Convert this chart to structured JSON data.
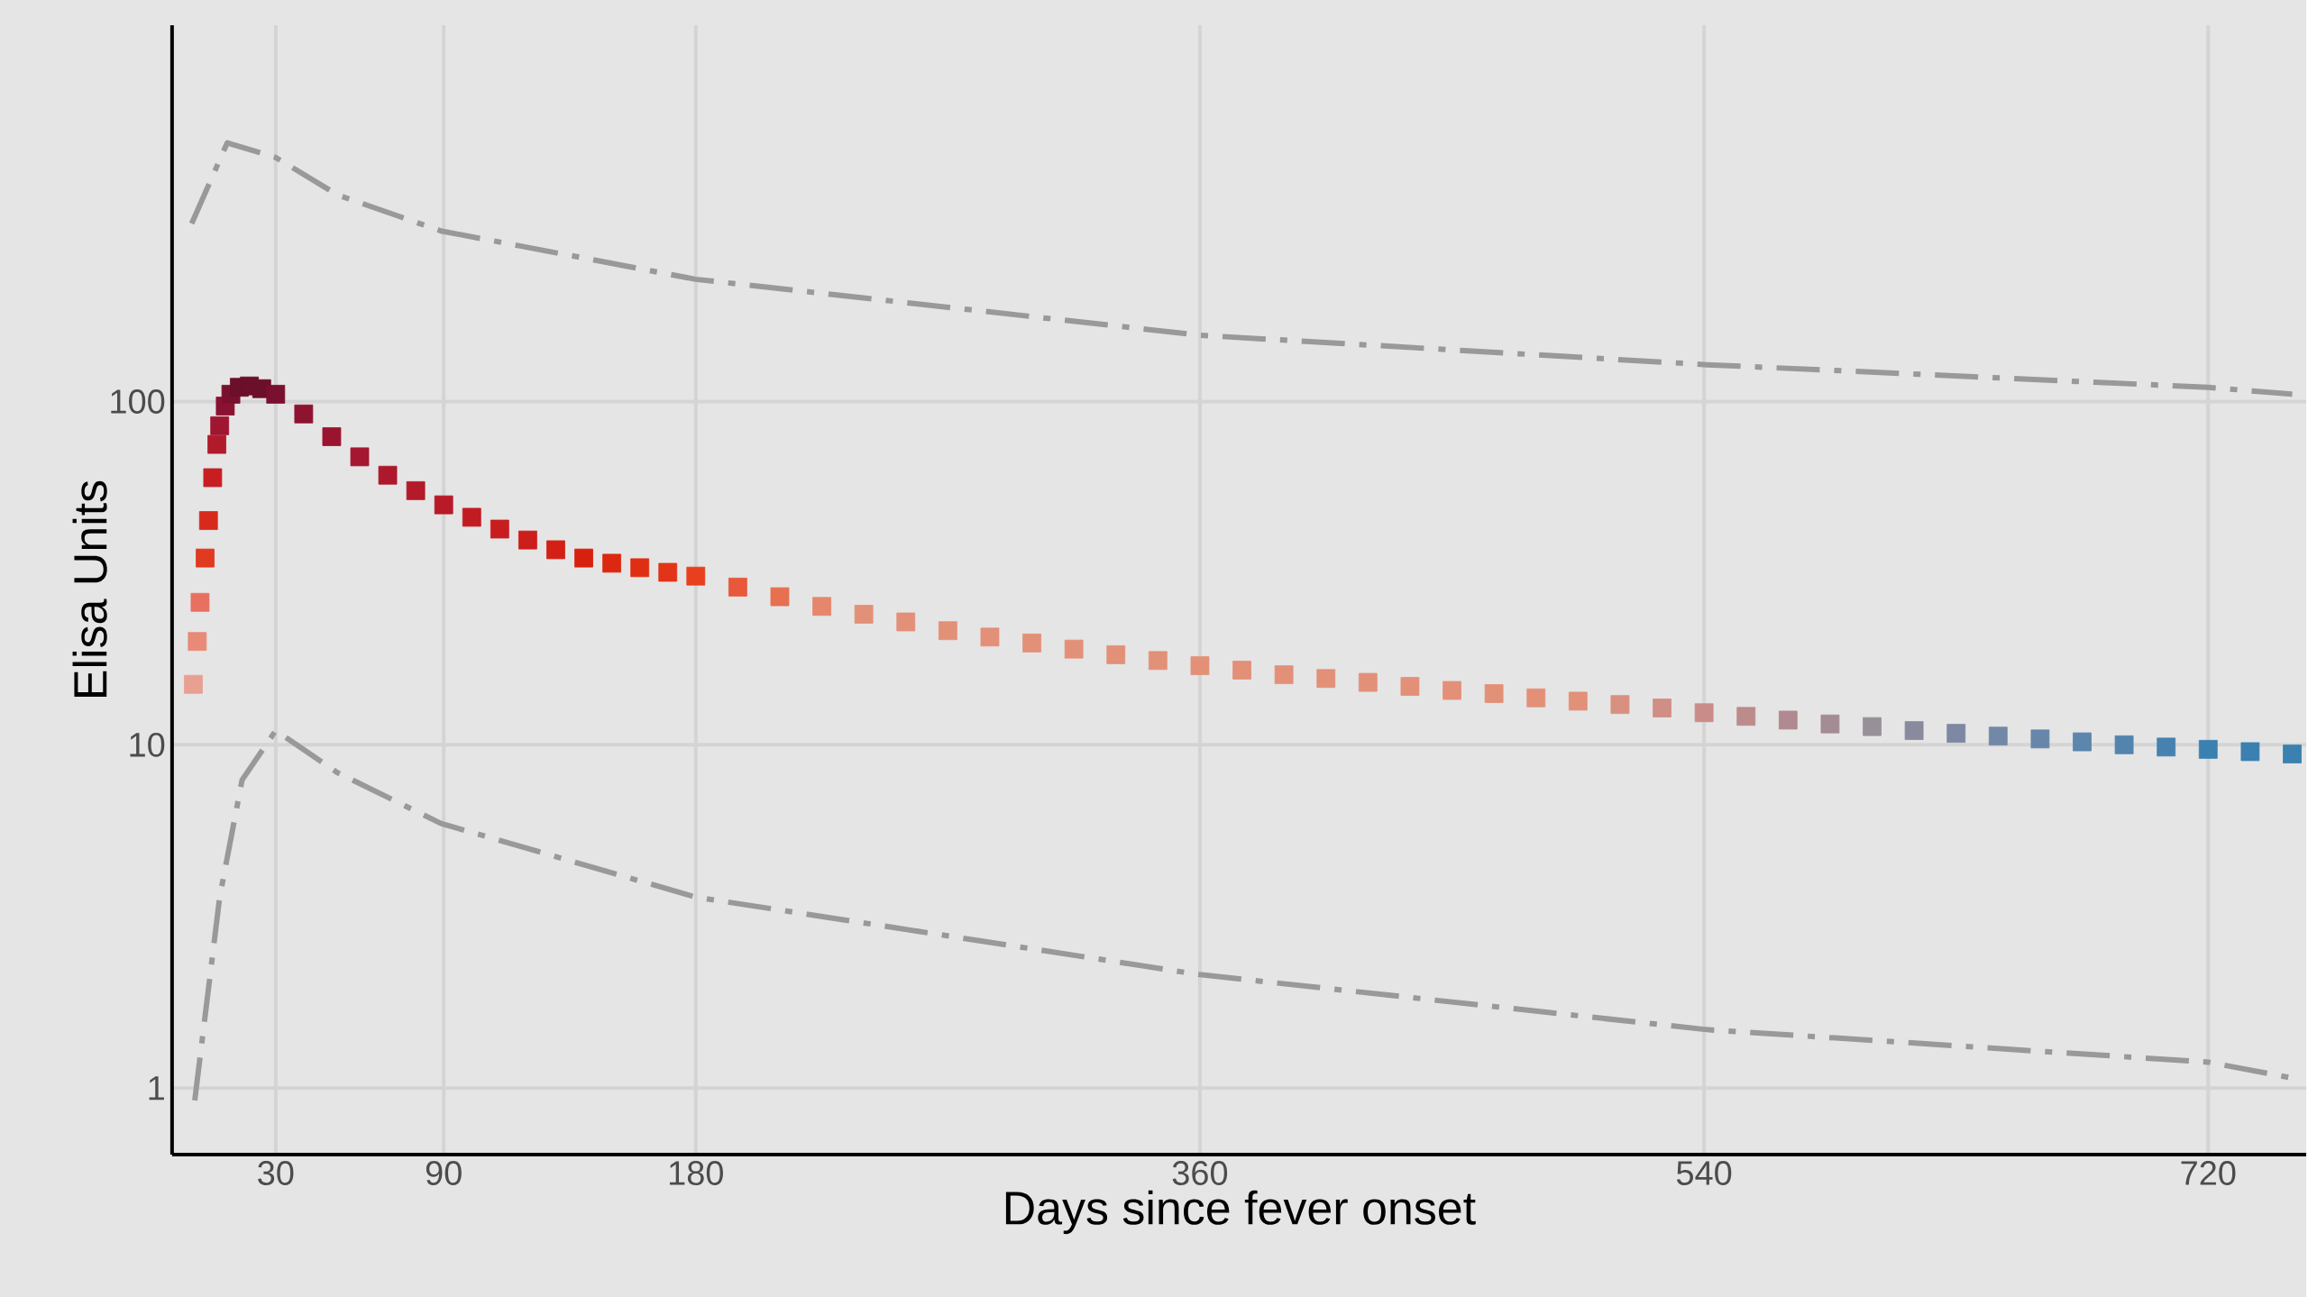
{
  "chart_data": {
    "type": "line",
    "xlabel": "Days since fever onset",
    "ylabel": "Elisa Units",
    "log": "y",
    "grid": true,
    "xlim": [
      -7,
      755
    ],
    "ylim": [
      0.64,
      1248
    ],
    "xticks": [
      30,
      90,
      180,
      360,
      540,
      720
    ],
    "yticks": [
      1,
      10,
      100
    ],
    "series": [
      {
        "x": [
          0,
          12.7,
          30,
          52,
          89,
          180,
          360,
          541,
          720,
          750
        ],
        "values": [
          330,
          567,
          514,
          400,
          314,
          227,
          156,
          128,
          110,
          105
        ],
        "color": "#999999",
        "line_style": "dashed"
      },
      {
        "type": "scatter",
        "marker": "square",
        "x": [
          0.6,
          2,
          3,
          4.8,
          6,
          7.5,
          9,
          10,
          12,
          14,
          17,
          20.6,
          25,
          30,
          40,
          50,
          60,
          70,
          80,
          90,
          100,
          110,
          120,
          130,
          140,
          150,
          160,
          170,
          180,
          195,
          210,
          225,
          240,
          255,
          270,
          285,
          300,
          315,
          330,
          345,
          360,
          375,
          390,
          405,
          420,
          435,
          450,
          465,
          480,
          495,
          510,
          525,
          540,
          555,
          570,
          585,
          600,
          615,
          630,
          645,
          660,
          675,
          690,
          705,
          720,
          735,
          750
        ],
        "values": [
          15,
          20,
          26,
          35,
          45,
          60,
          75,
          85,
          97,
          105,
          110,
          111,
          109,
          105,
          92,
          79,
          69,
          61,
          55,
          50,
          46,
          42.5,
          39.5,
          37,
          35,
          33.8,
          32.8,
          31.8,
          31,
          28.8,
          27,
          25.3,
          24,
          22.8,
          21.5,
          20.6,
          19.8,
          19,
          18.3,
          17.6,
          17,
          16.5,
          16,
          15.6,
          15.2,
          14.8,
          14.4,
          14.1,
          13.7,
          13.4,
          13.1,
          12.8,
          12.4,
          12.1,
          11.8,
          11.5,
          11.3,
          11,
          10.8,
          10.6,
          10.4,
          10.2,
          10,
          9.85,
          9.7,
          9.55,
          9.4
        ],
        "colors": [
          "#e8a090",
          "#e88a78",
          "#e87060",
          "#e03a20",
          "#d82a1c",
          "#c81e22",
          "#b01a2a",
          "#a01530",
          "#8a1230",
          "#7a1030",
          "#6b0f2a",
          "#6b0f2a",
          "#6b0f2a",
          "#7a1030",
          "#8e1330",
          "#9a1430",
          "#a51630",
          "#ae182c",
          "#b41a2a",
          "#b81a28",
          "#c21c22",
          "#c81d1e",
          "#cc1e1a",
          "#d42014",
          "#d8200f",
          "#dc2810",
          "#e02e14",
          "#e23418",
          "#e8401e",
          "#e8583a",
          "#e6704f",
          "#e6866c",
          "#e39078",
          "#e39078",
          "#e39078",
          "#e39078",
          "#e39078",
          "#e39078",
          "#e39078",
          "#e39078",
          "#e39078",
          "#e39078",
          "#e39078",
          "#e39078",
          "#e39078",
          "#e39078",
          "#e39078",
          "#e39078",
          "#e39078",
          "#e39078",
          "#d89080",
          "#d08e84",
          "#c98c88",
          "#bc8b8c",
          "#b08a90",
          "#a48c94",
          "#989098",
          "#8a8a9e",
          "#7e88a2",
          "#7288a6",
          "#6886aa",
          "#5c86ac",
          "#5284ae",
          "#4682b0",
          "#3a80b0",
          "#3a80b0",
          "#3a80b0"
        ]
      },
      {
        "x": [
          1.1,
          10,
          18,
          30,
          52,
          89,
          180,
          360,
          541,
          720,
          750
        ],
        "values": [
          0.92,
          3.6,
          7.9,
          11,
          8.3,
          5.9,
          3.6,
          2.14,
          1.48,
          1.19,
          1.07
        ],
        "color": "#999999",
        "line_style": "dashed"
      }
    ]
  }
}
